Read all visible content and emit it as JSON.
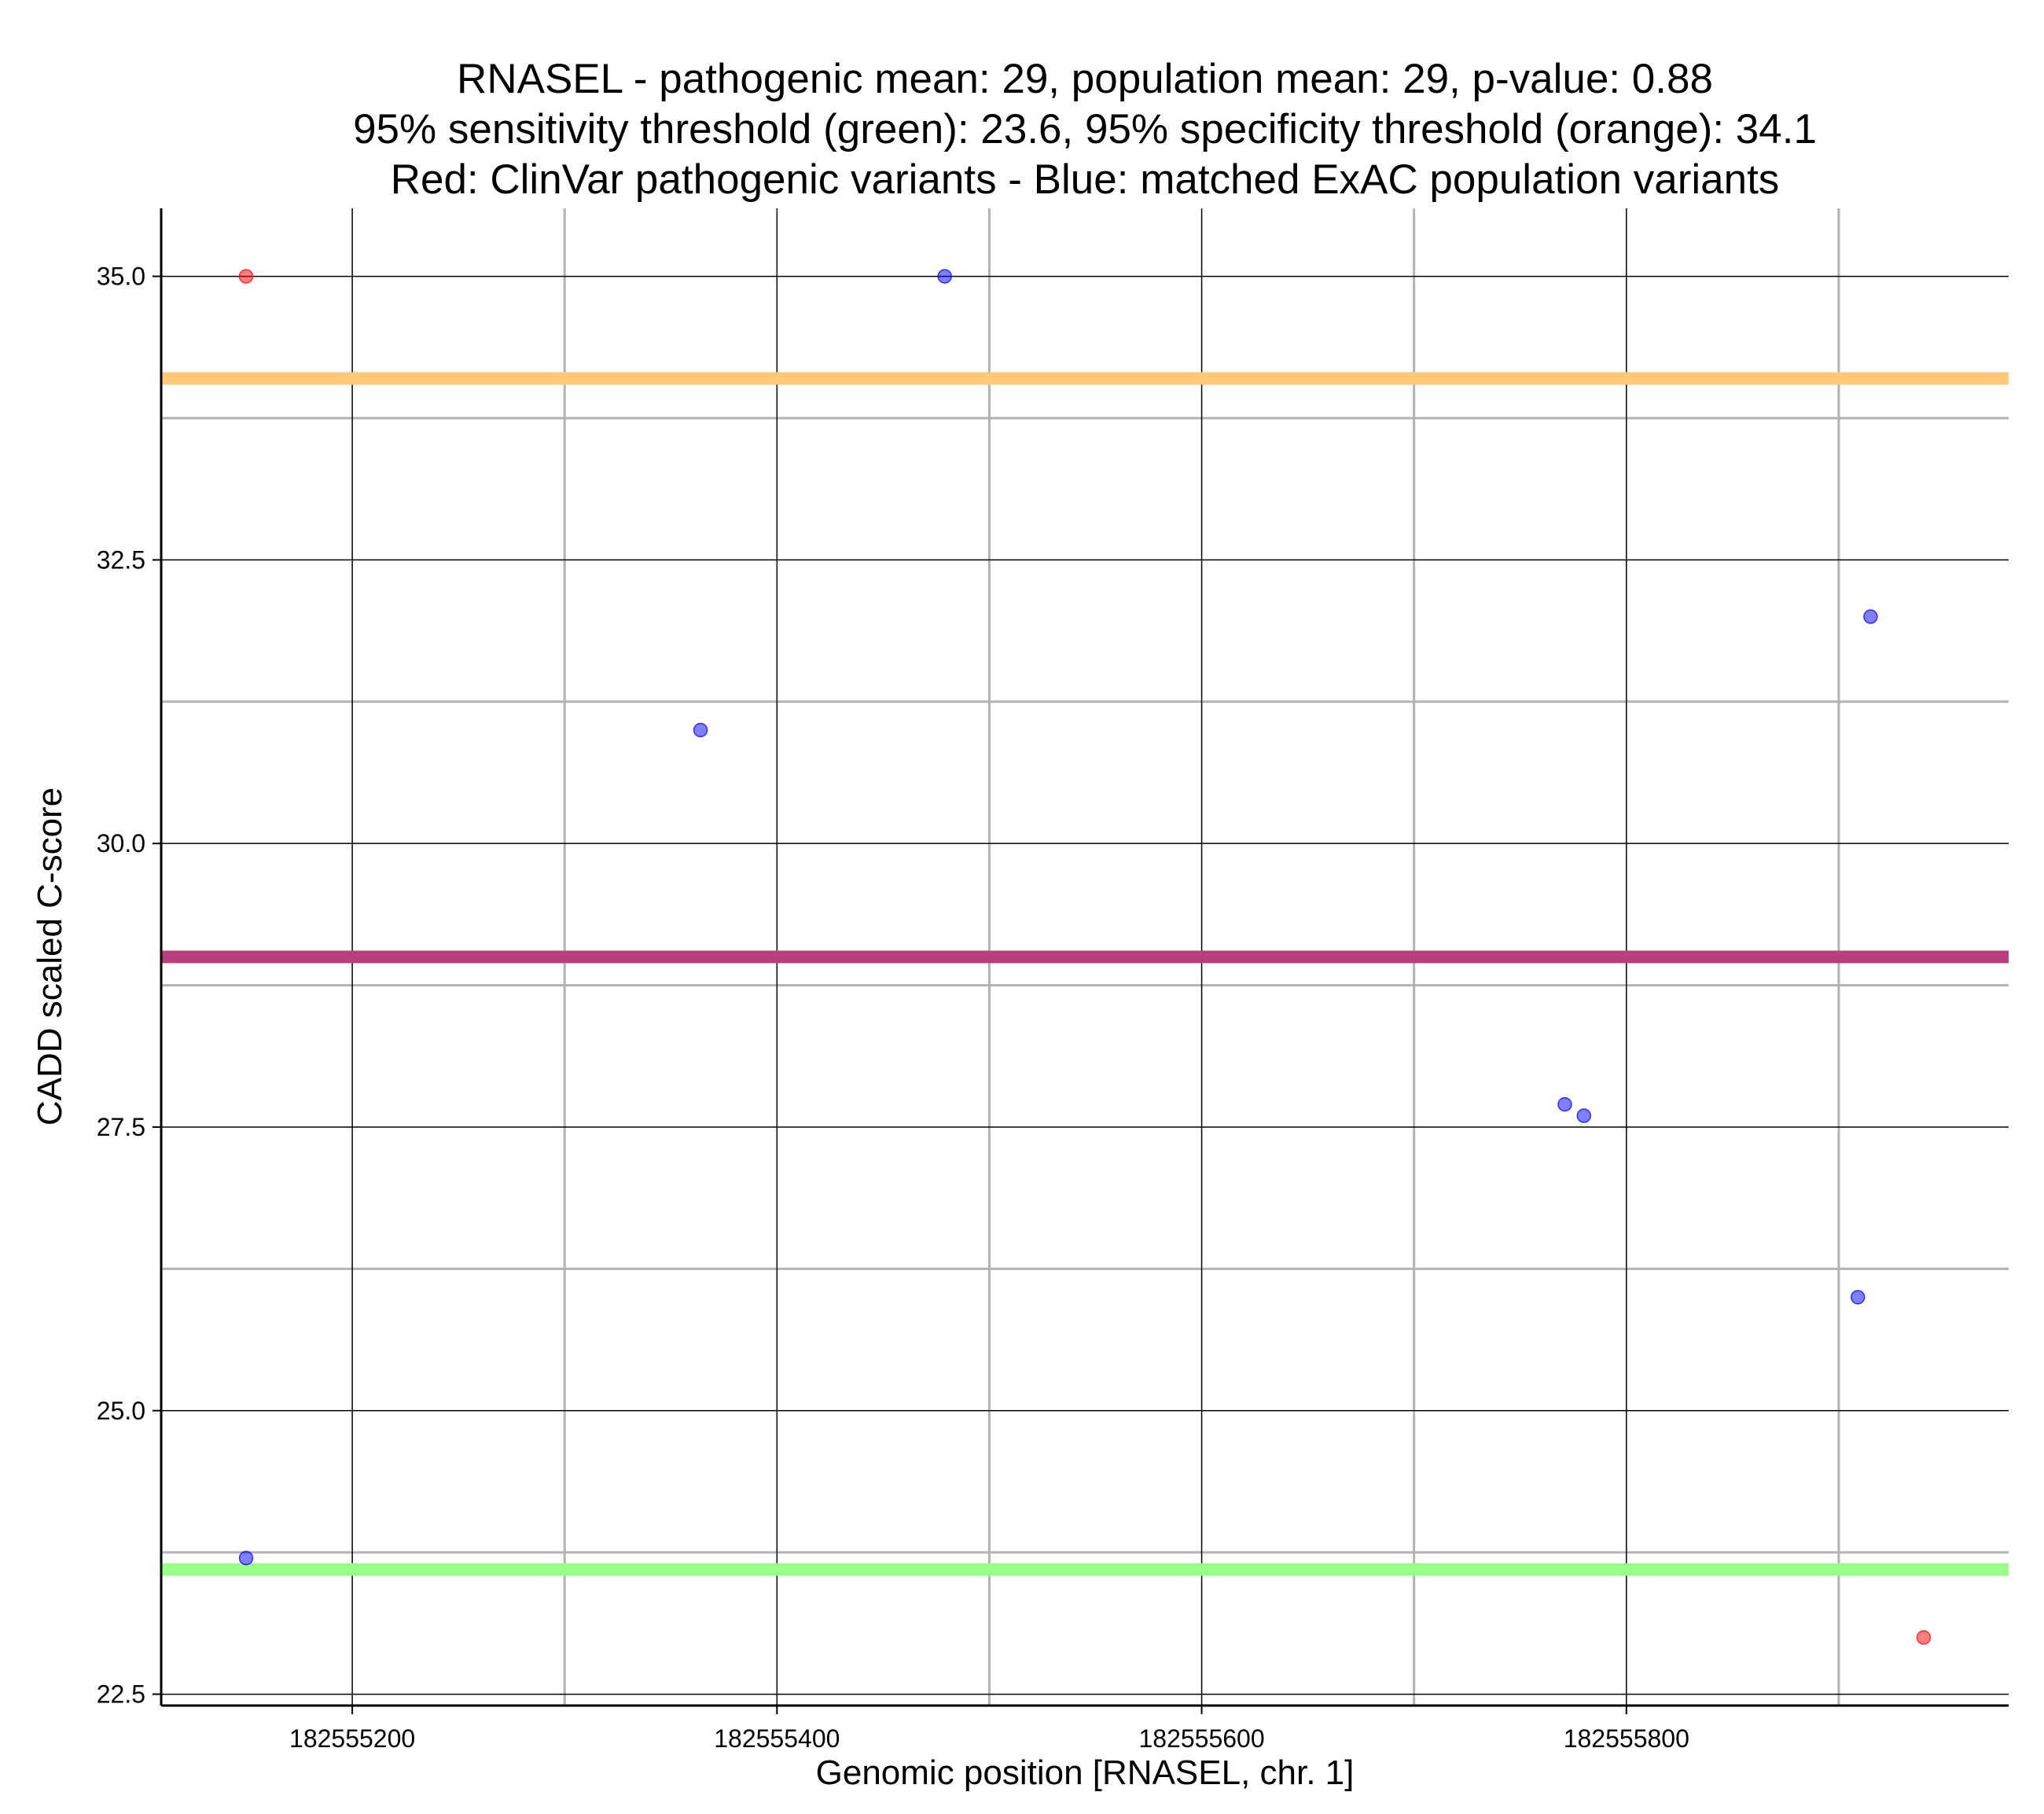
{
  "chart_data": {
    "type": "scatter",
    "title_lines": [
      "RNASEL - pathogenic mean: 29, population mean: 29, p-value: 0.88",
      "95% sensitivity threshold (green): 23.6, 95% specificity threshold (orange): 34.1",
      "Red: ClinVar pathogenic variants - Blue: matched ExAC population variants"
    ],
    "xlabel": "Genomic position [RNASEL, chr. 1]",
    "ylabel": "CADD scaled C-score",
    "xlim": [
      182555110,
      182555980
    ],
    "ylim": [
      22.4,
      35.6
    ],
    "x_major_ticks": [
      182555200,
      182555400,
      182555600,
      182555800
    ],
    "x_tick_labels": [
      "182555200",
      "182555400",
      "182555600",
      "182555800"
    ],
    "x_minor_grid": [
      182555300,
      182555500,
      182555700,
      182555900
    ],
    "y_major_ticks": [
      22.5,
      25.0,
      27.5,
      30.0,
      32.5,
      35.0
    ],
    "y_tick_labels": [
      "22.5",
      "25.0",
      "27.5",
      "30.0",
      "32.5",
      "35.0"
    ],
    "y_minor_grid": [
      23.75,
      26.25,
      28.75,
      31.25,
      33.75
    ],
    "grid": true,
    "legend": "none",
    "series": [
      {
        "color": "#ff0000",
        "points": [
          {
            "x": 182555150,
            "y": 35.0
          },
          {
            "x": 182555940,
            "y": 23.0
          }
        ]
      },
      {
        "color": "#0000ff",
        "points": [
          {
            "x": 182555150,
            "y": 23.7
          },
          {
            "x": 182555364,
            "y": 31.0
          },
          {
            "x": 182555479,
            "y": 35.0
          },
          {
            "x": 182555771,
            "y": 27.7
          },
          {
            "x": 182555780,
            "y": 27.6
          },
          {
            "x": 182555909,
            "y": 26.0
          },
          {
            "x": 182555915,
            "y": 32.0
          }
        ]
      }
    ],
    "reference_lines": [
      {
        "y": 34.1,
        "color": "#ffc87a"
      },
      {
        "y": 29.0,
        "color": "#b8407e"
      },
      {
        "y": 23.6,
        "color": "#99ff88"
      }
    ]
  }
}
